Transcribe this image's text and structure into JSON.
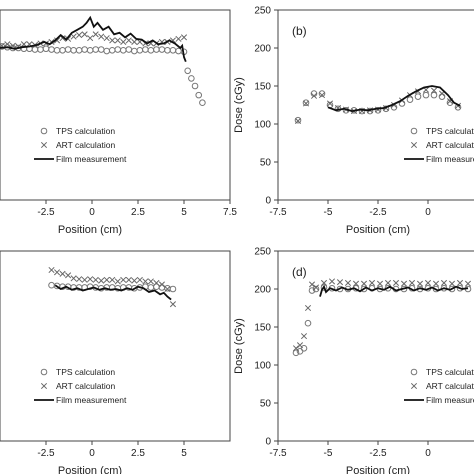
{
  "chart_data": [
    {
      "id": "a",
      "type": "line",
      "panel_label": "",
      "xlabel": "Position (cm)",
      "ylabel": "",
      "xlim": [
        -5.0,
        7.5
      ],
      "ylim": [
        0,
        250
      ],
      "xticks": [
        -2.5,
        0,
        2.5,
        5,
        7.5
      ],
      "xtick_labels": [
        "-2.5",
        "0",
        "2.5",
        "5",
        "7.5"
      ],
      "yticks": [],
      "ytick_labels": [],
      "legend": {
        "location": "lower-right",
        "entries": [
          "TPS calculation",
          "ART calculation",
          "Film measurement"
        ]
      },
      "series": [
        {
          "name": "TPS calculation",
          "marker": "circle",
          "x": [
            -4.9,
            -4.6,
            -4.3,
            -4.0,
            -3.7,
            -3.4,
            -3.1,
            -2.8,
            -2.5,
            -2.2,
            -1.9,
            -1.6,
            -1.3,
            -1.0,
            -0.7,
            -0.4,
            -0.1,
            0.2,
            0.5,
            0.8,
            1.1,
            1.4,
            1.7,
            2.0,
            2.3,
            2.6,
            2.9,
            3.2,
            3.5,
            3.8,
            4.1,
            4.4,
            4.7,
            5.0,
            5.2,
            5.4,
            5.6,
            5.8,
            6.0
          ],
          "y": [
            202,
            201,
            200,
            200,
            199,
            199,
            198,
            198,
            199,
            198,
            197,
            197,
            198,
            197,
            197,
            198,
            197,
            198,
            198,
            196,
            197,
            198,
            197,
            198,
            196,
            197,
            198,
            197,
            198,
            198,
            197,
            197,
            196,
            195,
            170,
            160,
            150,
            138,
            128
          ]
        },
        {
          "name": "ART calculation",
          "marker": "x",
          "x": [
            -4.9,
            -4.6,
            -4.3,
            -4.0,
            -3.7,
            -3.4,
            -3.1,
            -2.8,
            -2.5,
            -2.2,
            -1.9,
            -1.6,
            -1.3,
            -1.0,
            -0.7,
            -0.4,
            -0.1,
            0.2,
            0.5,
            0.8,
            1.1,
            1.4,
            1.7,
            2.0,
            2.3,
            2.6,
            2.9,
            3.2,
            3.5,
            3.8,
            4.1,
            4.4,
            4.7,
            5.0
          ],
          "y": [
            203,
            205,
            203,
            202,
            205,
            205,
            204,
            206,
            206,
            208,
            210,
            213,
            212,
            215,
            217,
            218,
            213,
            218,
            215,
            213,
            210,
            210,
            208,
            210,
            208,
            208,
            206,
            206,
            206,
            208,
            208,
            210,
            212,
            214
          ]
        },
        {
          "name": "Film measurement",
          "marker": "line",
          "x": [
            -5.0,
            -4.6,
            -4.2,
            -3.8,
            -3.4,
            -3.0,
            -2.6,
            -2.3,
            -2.0,
            -1.7,
            -1.4,
            -1.1,
            -0.8,
            -0.5,
            -0.3,
            -0.1,
            0.1,
            0.3,
            0.6,
            0.9,
            1.2,
            1.5,
            1.8,
            2.1,
            2.4,
            2.7,
            3.0,
            3.3,
            3.6,
            3.9,
            4.2,
            4.5,
            4.8,
            4.9,
            5.0,
            5.1
          ],
          "y": [
            200,
            201,
            199,
            201,
            202,
            204,
            208,
            205,
            210,
            217,
            211,
            220,
            224,
            228,
            233,
            240,
            228,
            233,
            224,
            228,
            218,
            220,
            214,
            219,
            212,
            211,
            206,
            210,
            205,
            206,
            210,
            206,
            200,
            203,
            188,
            182
          ]
        }
      ]
    },
    {
      "id": "b",
      "type": "line",
      "panel_label": "(b)",
      "xlabel": "Position (cm)",
      "ylabel": "Dose (cGy)",
      "xlim": [
        -7.5,
        2.5
      ],
      "ylim": [
        0,
        250
      ],
      "xticks": [
        -7.5,
        -5,
        -2.5,
        0
      ],
      "xtick_labels": [
        "-7.5",
        "-5",
        "-2.5",
        "0"
      ],
      "yticks": [
        0,
        50,
        100,
        150,
        200,
        250
      ],
      "ytick_labels": [
        "0",
        "50",
        "100",
        "150",
        "200",
        "250"
      ],
      "legend": {
        "location": "lower-right",
        "entries": [
          "TPS calculation",
          "ART calculation",
          "Film measurement"
        ]
      },
      "series": [
        {
          "name": "TPS calculation",
          "marker": "circle",
          "x": [
            -6.5,
            -6.1,
            -5.7,
            -5.3,
            -4.9,
            -4.5,
            -4.1,
            -3.7,
            -3.3,
            -2.9,
            -2.5,
            -2.1,
            -1.7,
            -1.3,
            -0.9,
            -0.5,
            -0.1,
            0.3,
            0.7,
            1.1,
            1.5
          ],
          "y": [
            105,
            128,
            140,
            140,
            125,
            120,
            118,
            118,
            117,
            117,
            118,
            120,
            122,
            127,
            132,
            136,
            138,
            138,
            136,
            128,
            122
          ]
        },
        {
          "name": "ART calculation",
          "marker": "x",
          "x": [
            -6.5,
            -6.1,
            -5.7,
            -5.3,
            -4.9,
            -4.5,
            -4.1,
            -3.7,
            -3.3,
            -2.9,
            -2.5,
            -2.1,
            -1.7,
            -1.3,
            -0.9,
            -0.5,
            -0.1,
            0.3,
            0.7,
            1.1,
            1.5
          ],
          "y": [
            104,
            127,
            137,
            138,
            127,
            121,
            119,
            117,
            117,
            118,
            119,
            121,
            125,
            131,
            138,
            143,
            145,
            144,
            140,
            130,
            124
          ]
        },
        {
          "name": "Film measurement",
          "marker": "line",
          "x": [
            -5.0,
            -4.6,
            -4.2,
            -3.8,
            -3.4,
            -3.0,
            -2.6,
            -2.2,
            -1.8,
            -1.4,
            -1.0,
            -0.6,
            -0.2,
            0.2,
            0.6,
            1.0,
            1.3,
            1.6
          ],
          "y": [
            122,
            118,
            120,
            117,
            119,
            118,
            120,
            121,
            125,
            130,
            137,
            143,
            148,
            150,
            148,
            138,
            128,
            124
          ]
        }
      ]
    },
    {
      "id": "c",
      "type": "line",
      "panel_label": "",
      "xlabel": "Position (cm)",
      "ylabel": "",
      "xlim": [
        -5.0,
        7.5
      ],
      "ylim": [
        0,
        250
      ],
      "xticks": [
        -2.5,
        0,
        2.5,
        5
      ],
      "xtick_labels": [
        "-2.5",
        "0",
        "2.5",
        "5"
      ],
      "yticks": [],
      "ytick_labels": [],
      "legend": {
        "location": "lower-right",
        "entries": [
          "TPS calculation",
          "ART calculation",
          "Film measurement"
        ]
      },
      "series": [
        {
          "name": "TPS calculation",
          "marker": "circle",
          "x": [
            -2.2,
            -1.9,
            -1.6,
            -1.3,
            -1.0,
            -0.7,
            -0.4,
            -0.1,
            0.2,
            0.5,
            0.8,
            1.1,
            1.4,
            1.7,
            2.0,
            2.3,
            2.6,
            2.9,
            3.2,
            3.5,
            3.8,
            4.1,
            4.4
          ],
          "y": [
            205,
            204,
            203,
            203,
            202,
            202,
            202,
            203,
            202,
            201,
            202,
            202,
            201,
            202,
            202,
            201,
            202,
            203,
            202,
            203,
            202,
            201,
            200
          ]
        },
        {
          "name": "ART calculation",
          "marker": "x",
          "x": [
            -2.2,
            -1.9,
            -1.6,
            -1.3,
            -1.0,
            -0.7,
            -0.4,
            -0.1,
            0.2,
            0.5,
            0.8,
            1.1,
            1.4,
            1.7,
            2.0,
            2.3,
            2.6,
            2.9,
            3.2,
            3.5,
            3.8,
            4.1,
            4.4
          ],
          "y": [
            225,
            222,
            220,
            218,
            214,
            213,
            212,
            213,
            212,
            211,
            212,
            212,
            210,
            212,
            212,
            211,
            212,
            210,
            210,
            208,
            206,
            200,
            180
          ]
        },
        {
          "name": "Film measurement",
          "marker": "line",
          "x": [
            -2.0,
            -1.7,
            -1.4,
            -1.1,
            -0.8,
            -0.5,
            -0.2,
            0.1,
            0.4,
            0.7,
            1.0,
            1.3,
            1.6,
            1.9,
            2.2,
            2.5,
            2.8,
            3.1,
            3.4,
            3.7,
            3.9,
            4.1,
            4.3
          ],
          "y": [
            205,
            200,
            203,
            199,
            201,
            198,
            200,
            202,
            199,
            201,
            199,
            200,
            198,
            201,
            199,
            203,
            201,
            196,
            198,
            193,
            195,
            190,
            186
          ]
        }
      ]
    },
    {
      "id": "d",
      "type": "line",
      "panel_label": "(d)",
      "xlabel": "Position (cm)",
      "ylabel": "Dose (cGy)",
      "xlim": [
        -7.5,
        2.5
      ],
      "ylim": [
        0,
        250
      ],
      "xticks": [
        -7.5,
        -5,
        -2.5,
        0
      ],
      "xtick_labels": [
        "-7.5",
        "-5",
        "-2.5",
        "0"
      ],
      "yticks": [
        0,
        50,
        100,
        150,
        200,
        250
      ],
      "ytick_labels": [
        "0",
        "50",
        "100",
        "150",
        "200",
        "250"
      ],
      "legend": {
        "location": "lower-right",
        "entries": [
          "TPS calculation",
          "ART calculation",
          "Film measurement"
        ]
      },
      "series": [
        {
          "name": "TPS calculation",
          "marker": "circle",
          "x": [
            -6.6,
            -6.4,
            -6.2,
            -6.0,
            -5.8,
            -5.6,
            -5.2,
            -4.8,
            -4.4,
            -4.0,
            -3.6,
            -3.2,
            -2.8,
            -2.4,
            -2.0,
            -1.6,
            -1.2,
            -0.8,
            -0.4,
            0.0,
            0.4,
            0.8,
            1.2,
            1.6,
            2.0
          ],
          "y": [
            116,
            118,
            122,
            155,
            198,
            200,
            202,
            201,
            200,
            200,
            201,
            200,
            201,
            200,
            201,
            200,
            200,
            201,
            200,
            201,
            200,
            201,
            200,
            201,
            200
          ]
        },
        {
          "name": "ART calculation",
          "marker": "x",
          "x": [
            -6.6,
            -6.4,
            -6.2,
            -6.0,
            -5.8,
            -5.6,
            -5.2,
            -4.8,
            -4.4,
            -4.0,
            -3.6,
            -3.2,
            -2.8,
            -2.4,
            -2.0,
            -1.6,
            -1.2,
            -0.8,
            -0.4,
            0.0,
            0.4,
            0.8,
            1.2,
            1.6,
            2.0
          ],
          "y": [
            122,
            126,
            138,
            175,
            206,
            202,
            208,
            210,
            209,
            208,
            207,
            207,
            208,
            207,
            208,
            208,
            207,
            208,
            207,
            208,
            207,
            208,
            207,
            208,
            207
          ]
        },
        {
          "name": "Film measurement",
          "marker": "line",
          "x": [
            -5.4,
            -5.3,
            -5.2,
            -5.1,
            -4.9,
            -4.6,
            -4.3,
            -4.0,
            -3.7,
            -3.4,
            -3.1,
            -2.8,
            -2.5,
            -2.2,
            -1.9,
            -1.6,
            -1.3,
            -1.0,
            -0.7,
            -0.4,
            -0.1,
            0.2,
            0.5,
            0.8,
            1.1,
            1.4,
            1.7,
            2.0
          ],
          "y": [
            190,
            199,
            203,
            196,
            201,
            198,
            202,
            199,
            201,
            197,
            202,
            198,
            201,
            199,
            203,
            198,
            200,
            202,
            198,
            201,
            199,
            202,
            198,
            201,
            199,
            203,
            200,
            201
          ]
        }
      ]
    }
  ]
}
